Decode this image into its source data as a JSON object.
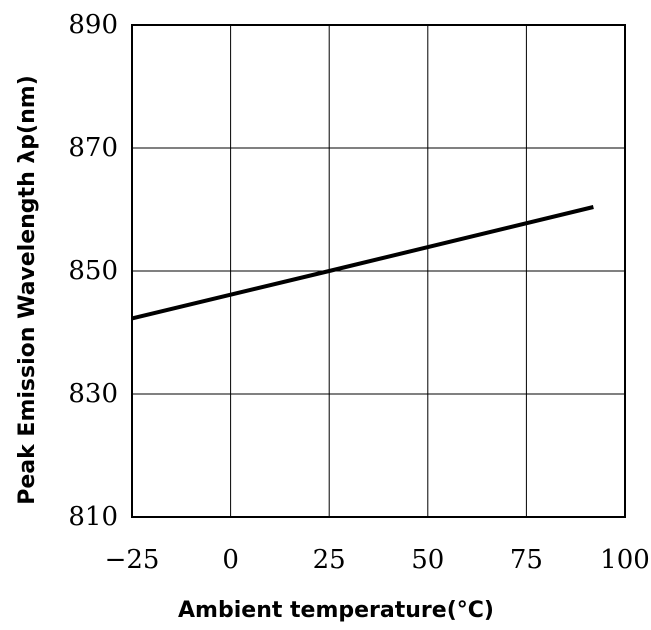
{
  "chart_data": {
    "type": "line",
    "title": "",
    "xlabel": "Ambient temperature(°C)",
    "ylabel": "Peak Emission Wavelength  λp(nm)",
    "xlim": [
      -25,
      100
    ],
    "ylim": [
      810,
      890
    ],
    "xticks": [
      -25,
      0,
      25,
      50,
      75,
      100
    ],
    "yticks": [
      810,
      830,
      850,
      870,
      890
    ],
    "x_tick_labels": [
      "−25",
      "0",
      "25",
      "50",
      "75",
      "100"
    ],
    "y_tick_labels": [
      "810",
      "830",
      "850",
      "870",
      "890"
    ],
    "grid": true,
    "legend": "none",
    "series": [
      {
        "color": "#000000",
        "points": [
          {
            "x": -25,
            "y": 842.3
          },
          {
            "x": 25,
            "y": 850.0
          },
          {
            "x": 92,
            "y": 860.4
          }
        ]
      }
    ]
  }
}
